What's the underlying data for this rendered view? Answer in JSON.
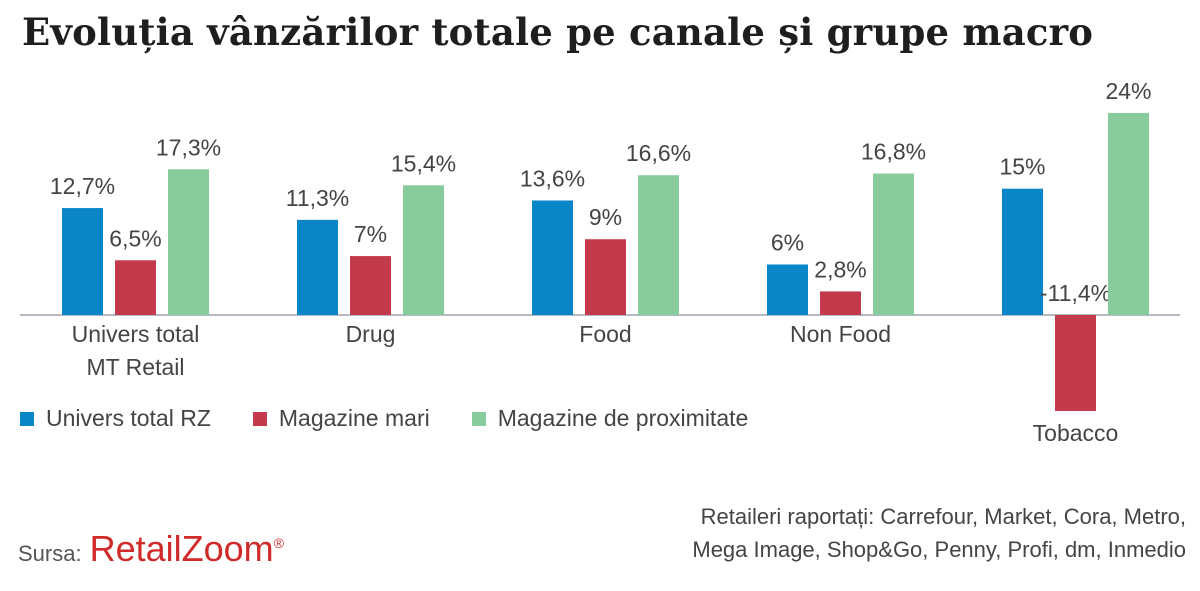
{
  "title": "Evoluția vânzărilor totale pe canale și grupe macro",
  "colors": {
    "series0": "#0a86c8",
    "series1": "#c23a4c",
    "series2": "#88cc9e",
    "axis": "#9aa4b0"
  },
  "chart_data": {
    "type": "bar",
    "categories": [
      [
        "Univers total",
        "MT Retail"
      ],
      [
        "Drug"
      ],
      [
        "Food"
      ],
      [
        "Non Food"
      ],
      [
        "Tobacco"
      ]
    ],
    "series": [
      {
        "name": "Univers total RZ",
        "values": [
          12.7,
          11.3,
          13.6,
          6,
          15
        ],
        "labels": [
          "12,7%",
          "11,3%",
          "13,6%",
          "6%",
          "15%"
        ]
      },
      {
        "name": "Magazine mari",
        "values": [
          6.5,
          7,
          9,
          2.8,
          -11.4
        ],
        "labels": [
          "6,5%",
          "7%",
          "9%",
          "2,8%",
          "-11,4%"
        ]
      },
      {
        "name": "Magazine de proximitate",
        "values": [
          17.3,
          15.4,
          16.6,
          16.8,
          24
        ],
        "labels": [
          "17,3%",
          "15,4%",
          "16,6%",
          "16,8%",
          "24%"
        ]
      }
    ],
    "ylim": [
      -11.4,
      24
    ]
  },
  "legend": [
    {
      "label": "Univers total RZ"
    },
    {
      "label": "Magazine mari"
    },
    {
      "label": "Magazine de proximitate"
    }
  ],
  "source": {
    "label": "Sursa:",
    "brand": "RetailZoom",
    "mark": "®"
  },
  "note": {
    "line1": "Retaileri raportați: Carrefour, Market, Cora, Metro,",
    "line2": "Mega Image, Shop&Go, Penny, Profi, dm, Inmedio"
  }
}
